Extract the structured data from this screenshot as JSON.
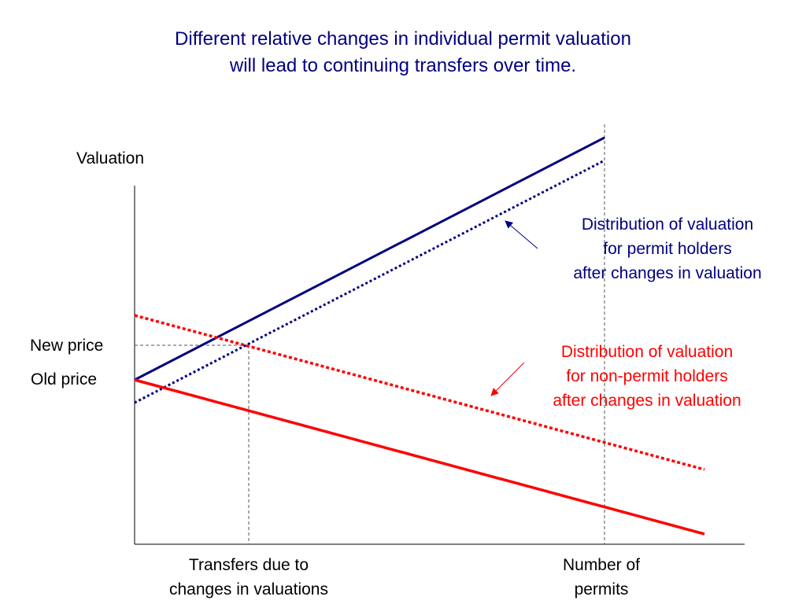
{
  "title": {
    "line1": "Different relative changes in individual permit valuation",
    "line2": "will lead to continuing transfers over time."
  },
  "axes": {
    "y_label": "Valuation",
    "x_label_line1": "Number of",
    "x_label_line2": "permits"
  },
  "price_labels": {
    "new_price": "New price",
    "old_price": "Old price"
  },
  "transfers_label": {
    "line1": "Transfers due to",
    "line2": "changes in valuations"
  },
  "annotations": {
    "permit_holders": {
      "line1": "Distribution of valuation",
      "line2": "for permit holders",
      "line3": "after changes in valuation",
      "color": "#000080"
    },
    "non_permit_holders": {
      "line1": "Distribution of valuation",
      "line2": "for non-permit holders",
      "line3": "after changes in valuation",
      "color": "#ff0000"
    }
  },
  "colors": {
    "navy": "#000080",
    "red": "#ff0000",
    "guide": "#555555"
  }
}
